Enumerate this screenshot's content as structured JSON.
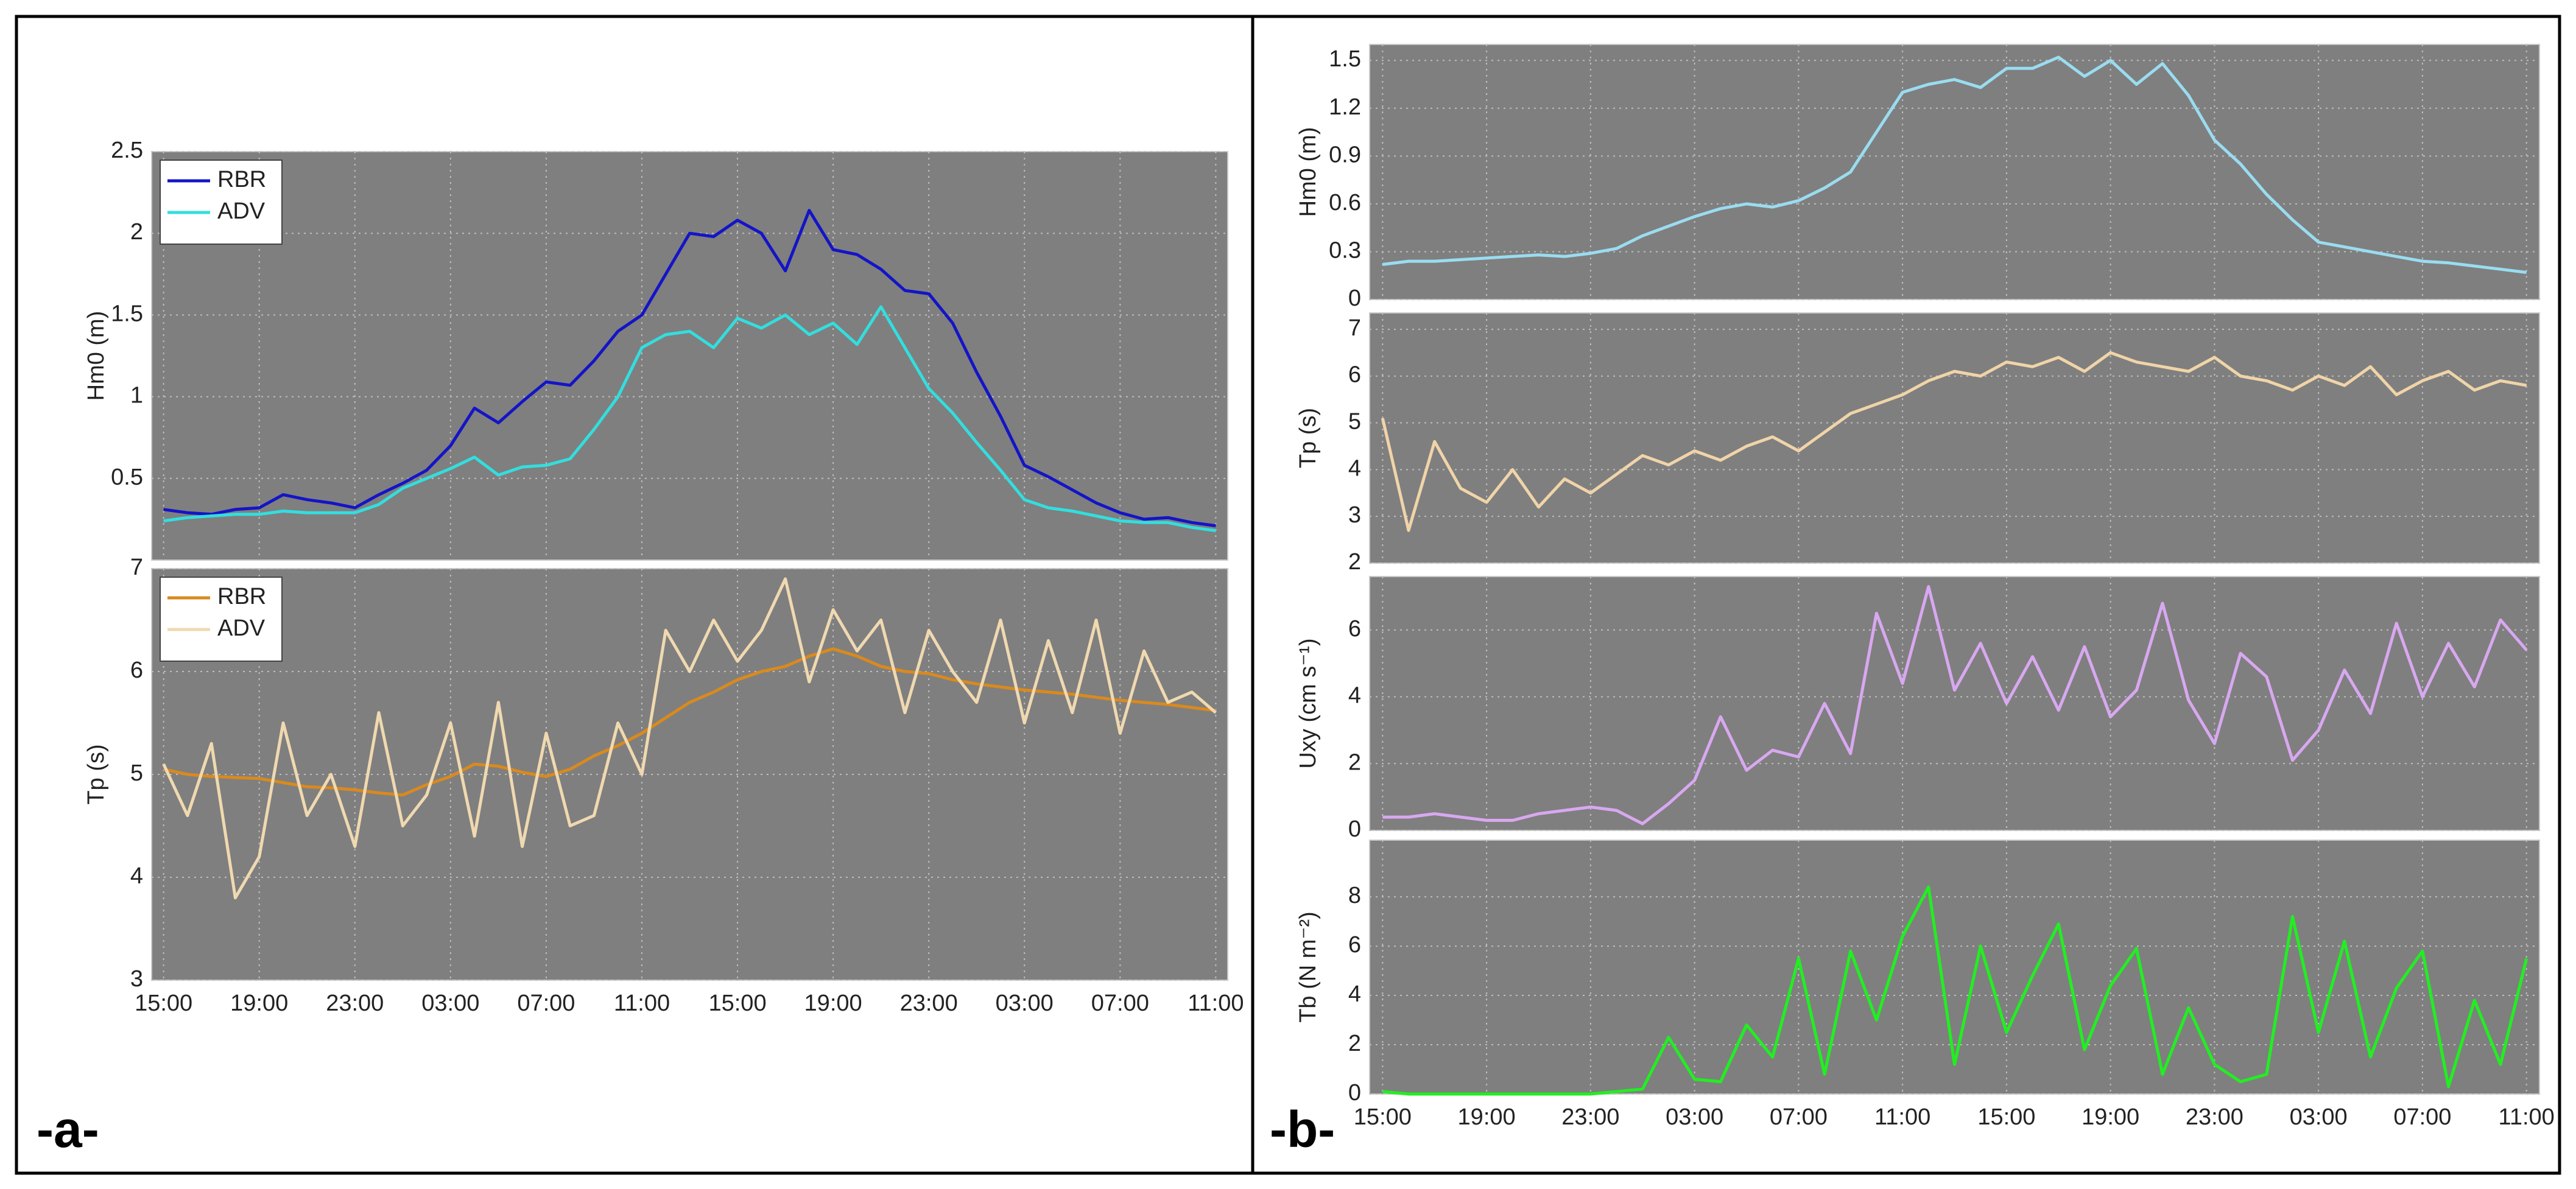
{
  "panel_labels": [
    "-a-",
    "-b-"
  ],
  "chart_data": [
    {
      "type": "line",
      "ylabel": "Hm0 (m)",
      "legend": "upper left",
      "grid": true,
      "x": [
        0,
        1,
        2,
        3,
        4,
        5,
        6,
        7,
        8,
        9,
        10,
        11,
        12,
        13,
        14,
        15,
        16,
        17,
        18,
        19,
        20,
        21,
        22,
        23,
        24,
        25,
        26,
        27,
        28,
        29,
        30,
        31,
        32,
        33,
        34,
        35,
        36,
        37,
        38,
        39,
        40,
        41,
        42,
        43,
        44
      ],
      "xlim": [
        -0.5,
        44.5
      ],
      "xticks": [
        0,
        4,
        8,
        12,
        16,
        20,
        24,
        28,
        32,
        36,
        40,
        44
      ],
      "ylim": [
        0,
        2.5
      ],
      "yticks": [
        0.5,
        1,
        1.5,
        2,
        2.5
      ],
      "series": [
        {
          "name": "RBR",
          "color": "#1414c8",
          "values": [
            0.31,
            0.29,
            0.28,
            0.31,
            0.32,
            0.4,
            0.37,
            0.35,
            0.32,
            0.4,
            0.47,
            0.55,
            0.7,
            0.93,
            0.84,
            0.97,
            1.09,
            1.07,
            1.22,
            1.4,
            1.5,
            1.75,
            2.0,
            1.98,
            2.08,
            2.0,
            1.77,
            2.14,
            1.9,
            1.87,
            1.78,
            1.65,
            1.63,
            1.45,
            1.15,
            0.88,
            0.58,
            0.51,
            0.43,
            0.35,
            0.29,
            0.25,
            0.26,
            0.23,
            0.21
          ]
        },
        {
          "name": "ADV",
          "color": "#33dede",
          "values": [
            0.24,
            0.26,
            0.27,
            0.28,
            0.28,
            0.3,
            0.29,
            0.29,
            0.29,
            0.34,
            0.44,
            0.5,
            0.56,
            0.63,
            0.52,
            0.57,
            0.58,
            0.62,
            0.8,
            1.0,
            1.3,
            1.38,
            1.4,
            1.3,
            1.48,
            1.42,
            1.5,
            1.38,
            1.45,
            1.32,
            1.55,
            1.3,
            1.05,
            0.9,
            0.72,
            0.55,
            0.37,
            0.32,
            0.3,
            0.27,
            0.24,
            0.23,
            0.23,
            0.2,
            0.18
          ]
        }
      ]
    },
    {
      "type": "line",
      "ylabel": "Tp (s)",
      "legend": "upper left",
      "grid": true,
      "x": [
        0,
        1,
        2,
        3,
        4,
        5,
        6,
        7,
        8,
        9,
        10,
        11,
        12,
        13,
        14,
        15,
        16,
        17,
        18,
        19,
        20,
        21,
        22,
        23,
        24,
        25,
        26,
        27,
        28,
        29,
        30,
        31,
        32,
        33,
        34,
        35,
        36,
        37,
        38,
        39,
        40,
        41,
        42,
        43,
        44
      ],
      "xlim": [
        -0.5,
        44.5
      ],
      "xticks": [
        {
          "value": 0,
          "label": "15:00"
        },
        {
          "value": 4,
          "label": "19:00"
        },
        {
          "value": 8,
          "label": "23:00"
        },
        {
          "value": 12,
          "label": "03:00"
        },
        {
          "value": 16,
          "label": "07:00"
        },
        {
          "value": 20,
          "label": "11:00"
        },
        {
          "value": 24,
          "label": "15:00"
        },
        {
          "value": 28,
          "label": "19:00"
        },
        {
          "value": 32,
          "label": "23:00"
        },
        {
          "value": 36,
          "label": "03:00"
        },
        {
          "value": 40,
          "label": "07:00"
        },
        {
          "value": 44,
          "label": "11:00"
        }
      ],
      "ylim": [
        3,
        7
      ],
      "yticks": [
        3,
        4,
        5,
        6,
        7
      ],
      "series": [
        {
          "name": "RBR",
          "color": "#d98a1e",
          "values": [
            5.05,
            5.0,
            4.98,
            4.97,
            4.96,
            4.92,
            4.88,
            4.87,
            4.85,
            4.82,
            4.8,
            4.9,
            4.98,
            5.1,
            5.08,
            5.02,
            4.98,
            5.05,
            5.18,
            5.28,
            5.4,
            5.55,
            5.7,
            5.8,
            5.92,
            6.0,
            6.05,
            6.15,
            6.22,
            6.15,
            6.05,
            6.0,
            5.98,
            5.92,
            5.88,
            5.85,
            5.82,
            5.8,
            5.78,
            5.75,
            5.72,
            5.7,
            5.68,
            5.65,
            5.62
          ]
        },
        {
          "name": "ADV",
          "color": "#f0d9b0",
          "values": [
            5.1,
            4.6,
            5.3,
            3.8,
            4.2,
            5.5,
            4.6,
            5.0,
            4.3,
            5.6,
            4.5,
            4.8,
            5.5,
            4.4,
            5.7,
            4.3,
            5.4,
            4.5,
            4.6,
            5.5,
            5.0,
            6.4,
            6.0,
            6.5,
            6.1,
            6.4,
            6.9,
            5.9,
            6.6,
            6.2,
            6.5,
            5.6,
            6.4,
            6.0,
            5.7,
            6.5,
            5.5,
            6.3,
            5.6,
            6.5,
            5.4,
            6.2,
            5.7,
            5.8,
            5.6
          ]
        }
      ]
    },
    {
      "type": "line",
      "ylabel": "Hm0 (m)",
      "grid": true,
      "x": [
        0,
        1,
        2,
        3,
        4,
        5,
        6,
        7,
        8,
        9,
        10,
        11,
        12,
        13,
        14,
        15,
        16,
        17,
        18,
        19,
        20,
        21,
        22,
        23,
        24,
        25,
        26,
        27,
        28,
        29,
        30,
        31,
        32,
        33,
        34,
        35,
        36,
        37,
        38,
        39,
        40,
        41,
        42,
        43,
        44
      ],
      "xlim": [
        -0.5,
        44.5
      ],
      "xticks": [
        0,
        4,
        8,
        12,
        16,
        20,
        24,
        28,
        32,
        36,
        40,
        44
      ],
      "ylim": [
        0,
        1.6
      ],
      "yticks": [
        0,
        0.3,
        0.6,
        0.9,
        1.2,
        1.5
      ],
      "series": [
        {
          "color": "#9adcf0",
          "values": [
            0.22,
            0.24,
            0.24,
            0.25,
            0.26,
            0.27,
            0.28,
            0.27,
            0.29,
            0.32,
            0.4,
            0.46,
            0.52,
            0.57,
            0.6,
            0.58,
            0.62,
            0.7,
            0.8,
            1.05,
            1.3,
            1.35,
            1.38,
            1.33,
            1.45,
            1.45,
            1.52,
            1.4,
            1.5,
            1.35,
            1.48,
            1.28,
            1.0,
            0.85,
            0.66,
            0.5,
            0.36,
            0.33,
            0.3,
            0.27,
            0.24,
            0.23,
            0.21,
            0.19,
            0.17
          ]
        }
      ]
    },
    {
      "type": "line",
      "ylabel": "Tp (s)",
      "grid": true,
      "x": [
        0,
        1,
        2,
        3,
        4,
        5,
        6,
        7,
        8,
        9,
        10,
        11,
        12,
        13,
        14,
        15,
        16,
        17,
        18,
        19,
        20,
        21,
        22,
        23,
        24,
        25,
        26,
        27,
        28,
        29,
        30,
        31,
        32,
        33,
        34,
        35,
        36,
        37,
        38,
        39,
        40,
        41,
        42,
        43,
        44
      ],
      "xlim": [
        -0.5,
        44.5
      ],
      "xticks": [
        0,
        4,
        8,
        12,
        16,
        20,
        24,
        28,
        32,
        36,
        40,
        44
      ],
      "ylim": [
        2,
        7.35
      ],
      "yticks": [
        2,
        3,
        4,
        5,
        6,
        7
      ],
      "series": [
        {
          "color": "#f0d4a8",
          "values": [
            5.1,
            2.7,
            4.6,
            3.6,
            3.3,
            4.0,
            3.2,
            3.8,
            3.5,
            3.9,
            4.3,
            4.1,
            4.4,
            4.2,
            4.5,
            4.7,
            4.4,
            4.8,
            5.2,
            5.4,
            5.6,
            5.9,
            6.1,
            6.0,
            6.3,
            6.2,
            6.4,
            6.1,
            6.5,
            6.3,
            6.2,
            6.1,
            6.4,
            6.0,
            5.9,
            5.7,
            6.0,
            5.8,
            6.2,
            5.6,
            5.9,
            6.1,
            5.7,
            5.9,
            5.8
          ]
        }
      ]
    },
    {
      "type": "line",
      "ylabel": "Uxy (cm s⁻¹)",
      "grid": true,
      "x": [
        0,
        1,
        2,
        3,
        4,
        5,
        6,
        7,
        8,
        9,
        10,
        11,
        12,
        13,
        14,
        15,
        16,
        17,
        18,
        19,
        20,
        21,
        22,
        23,
        24,
        25,
        26,
        27,
        28,
        29,
        30,
        31,
        32,
        33,
        34,
        35,
        36,
        37,
        38,
        39,
        40,
        41,
        42,
        43,
        44
      ],
      "xlim": [
        -0.5,
        44.5
      ],
      "xticks": [
        0,
        4,
        8,
        12,
        16,
        20,
        24,
        28,
        32,
        36,
        40,
        44
      ],
      "ylim": [
        0,
        7.6
      ],
      "yticks": [
        0,
        2,
        4,
        6
      ],
      "series": [
        {
          "color": "#d8a8f0",
          "values": [
            0.4,
            0.4,
            0.5,
            0.4,
            0.3,
            0.3,
            0.5,
            0.6,
            0.7,
            0.6,
            0.2,
            0.8,
            1.5,
            3.4,
            1.8,
            2.4,
            2.2,
            3.8,
            2.3,
            6.5,
            4.4,
            7.3,
            4.2,
            5.6,
            3.8,
            5.2,
            3.6,
            5.5,
            3.4,
            4.2,
            6.8,
            3.9,
            2.6,
            5.3,
            4.6,
            2.1,
            3.0,
            4.8,
            3.5,
            6.2,
            4.0,
            5.6,
            4.3,
            6.3,
            5.4
          ]
        }
      ]
    },
    {
      "type": "line",
      "ylabel": "Tb (N m⁻²)",
      "grid": true,
      "x": [
        0,
        1,
        2,
        3,
        4,
        5,
        6,
        7,
        8,
        9,
        10,
        11,
        12,
        13,
        14,
        15,
        16,
        17,
        18,
        19,
        20,
        21,
        22,
        23,
        24,
        25,
        26,
        27,
        28,
        29,
        30,
        31,
        32,
        33,
        34,
        35,
        36,
        37,
        38,
        39,
        40,
        41,
        42,
        43,
        44
      ],
      "xlim": [
        -0.5,
        44.5
      ],
      "xticks": [
        {
          "value": 0,
          "label": "15:00"
        },
        {
          "value": 4,
          "label": "19:00"
        },
        {
          "value": 8,
          "label": "23:00"
        },
        {
          "value": 12,
          "label": "03:00"
        },
        {
          "value": 16,
          "label": "07:00"
        },
        {
          "value": 20,
          "label": "11:00"
        },
        {
          "value": 24,
          "label": "15:00"
        },
        {
          "value": 28,
          "label": "19:00"
        },
        {
          "value": 32,
          "label": "23:00"
        },
        {
          "value": 36,
          "label": "03:00"
        },
        {
          "value": 40,
          "label": "07:00"
        },
        {
          "value": 44,
          "label": "11:00"
        }
      ],
      "ylim": [
        0,
        10.3
      ],
      "yticks": [
        0,
        2,
        4,
        6,
        8
      ],
      "series": [
        {
          "color": "#22ee22",
          "values": [
            0.1,
            0,
            0,
            0,
            0,
            0,
            0,
            0,
            0,
            0.1,
            0.2,
            2.3,
            0.6,
            0.5,
            2.8,
            1.5,
            5.5,
            0.8,
            5.8,
            3.0,
            6.4,
            8.4,
            1.2,
            6.0,
            2.5,
            4.8,
            6.9,
            1.8,
            4.4,
            5.9,
            0.8,
            3.5,
            1.2,
            0.5,
            0.8,
            7.2,
            2.5,
            6.2,
            1.5,
            4.3,
            5.8,
            0.3,
            3.8,
            1.2,
            5.5
          ]
        }
      ]
    }
  ]
}
